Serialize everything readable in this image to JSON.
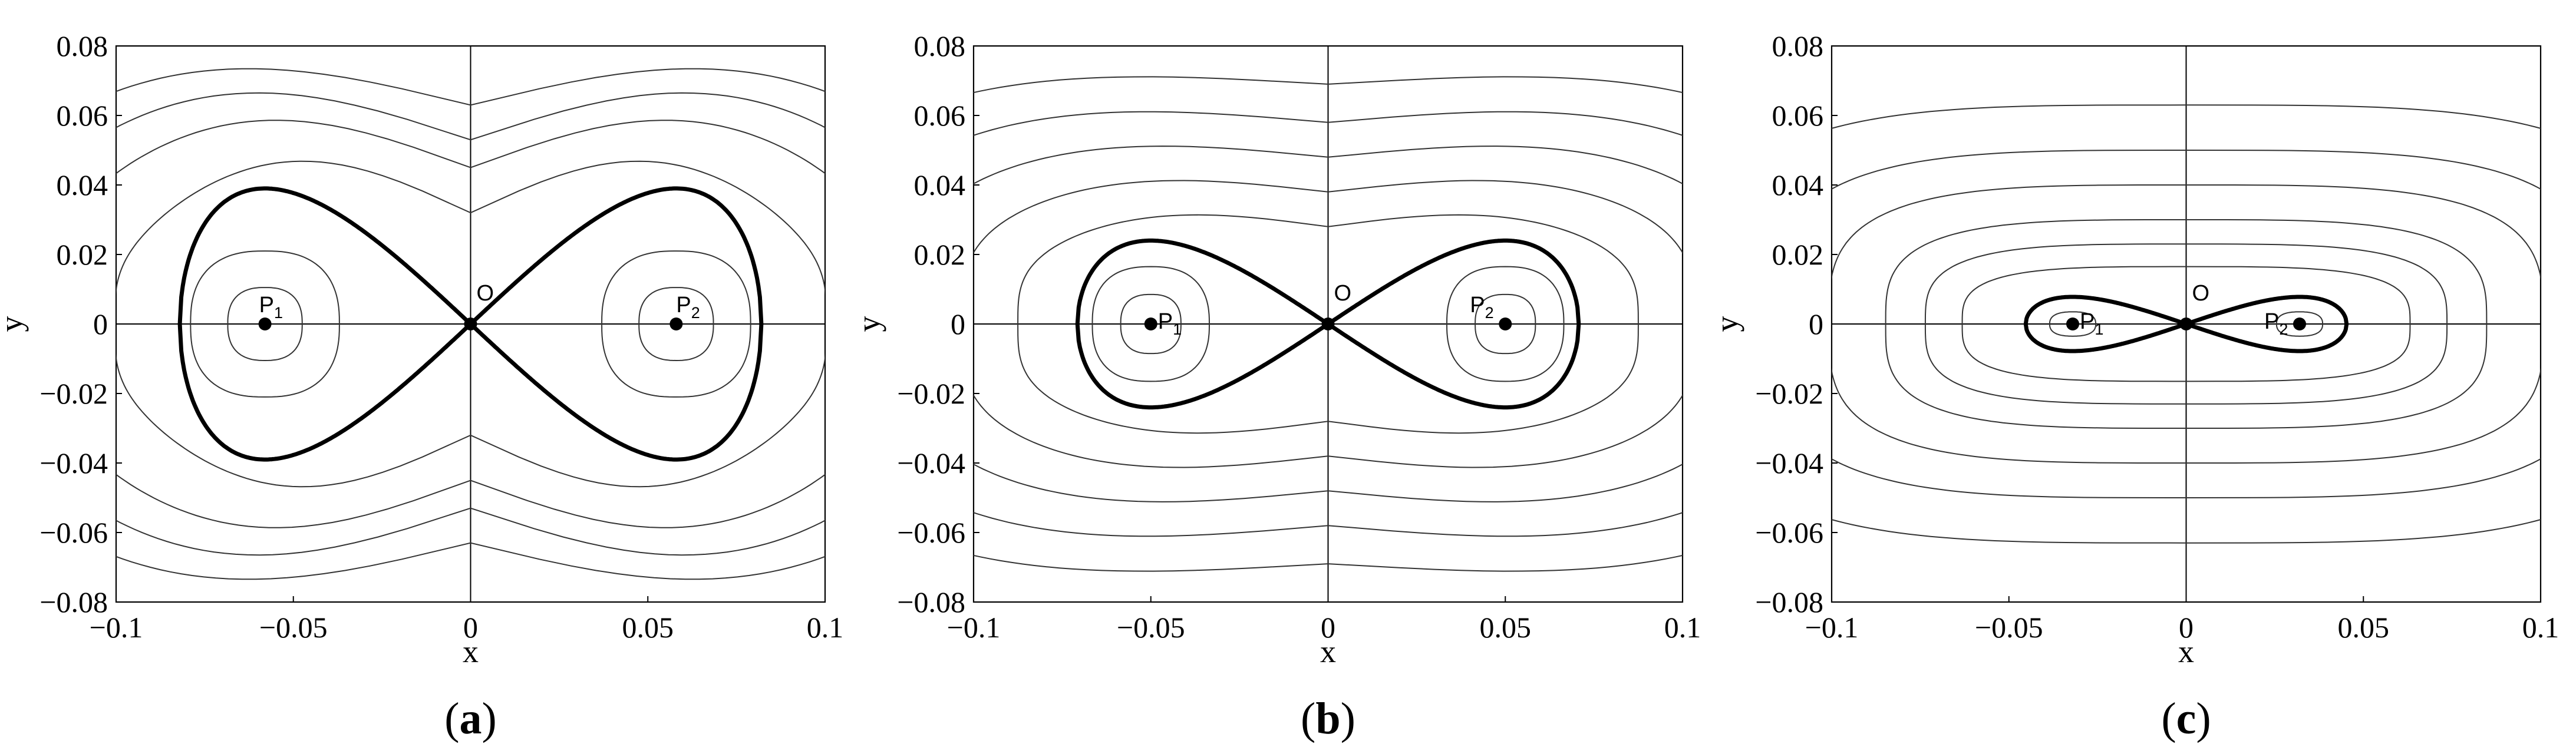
{
  "chart_data": [
    {
      "type": "contour",
      "panel_label": "a",
      "xlabel": "x",
      "ylabel": "y",
      "xlim": [
        -0.1,
        0.1
      ],
      "ylim": [
        -0.08,
        0.08
      ],
      "xticks": [
        -0.1,
        -0.05,
        0,
        0.05,
        0.1
      ],
      "xtick_labels": [
        "−0.1",
        "−0.05",
        "0",
        "0.05",
        "0.1"
      ],
      "yticks": [
        0.08,
        0.06,
        0.04,
        0.02,
        0,
        -0.02,
        -0.04,
        -0.06,
        -0.08
      ],
      "ytick_labels": [
        "0.08",
        "0.06",
        "0.04",
        "0.02",
        "0",
        "−0.02",
        "−0.04",
        "−0.06",
        "−0.08"
      ],
      "equilibria": [
        {
          "name": "P",
          "sub": "1",
          "x": -0.058,
          "y": 0
        },
        {
          "name": "O",
          "sub": "",
          "x": 0,
          "y": 0
        },
        {
          "name": "P",
          "sub": "2",
          "x": 0.058,
          "y": 0
        }
      ],
      "saddle_x": 0.058,
      "separatrix_y_max": 0.039,
      "inner_orbits": [
        {
          "ex": 0.0105,
          "ey": 0.0105
        },
        {
          "ex": 0.021,
          "ey": 0.021
        }
      ],
      "outer_orbits": [
        {
          "y_center": 0.032,
          "y_peak": 0.048
        },
        {
          "y_center": 0.045,
          "y_peak": 0.06
        },
        {
          "y_center": 0.053,
          "y_peak": 0.068
        },
        {
          "y_center": 0.063,
          "y_peak": 0.075
        }
      ]
    },
    {
      "type": "contour",
      "panel_label": "b",
      "xlabel": "x",
      "ylabel": "y",
      "xlim": [
        -0.1,
        0.1
      ],
      "ylim": [
        -0.08,
        0.08
      ],
      "xticks": [
        -0.1,
        -0.05,
        0,
        0.05,
        0.1
      ],
      "xtick_labels": [
        "−0.1",
        "−0.05",
        "0",
        "0.05",
        "0.1"
      ],
      "yticks": [
        0.08,
        0.06,
        0.04,
        0.02,
        0,
        -0.02,
        -0.04,
        -0.06,
        -0.08
      ],
      "ytick_labels": [
        "0.08",
        "0.06",
        "0.04",
        "0.02",
        "0",
        "−0.02",
        "−0.04",
        "−0.06",
        "−0.08"
      ],
      "equilibria": [
        {
          "name": "P",
          "sub": "1",
          "x": -0.05,
          "y": 0
        },
        {
          "name": "O",
          "sub": "",
          "x": 0,
          "y": 0
        },
        {
          "name": "P",
          "sub": "2",
          "x": 0.05,
          "y": 0
        }
      ],
      "saddle_x": 0.05,
      "separatrix_y_max": 0.024,
      "inner_orbits": [
        {
          "ex": 0.0085,
          "ey": 0.0085
        },
        {
          "ex": 0.0165,
          "ey": 0.0165
        }
      ],
      "outer_orbits": [
        {
          "y_center": 0.028,
          "y_peak": 0.032
        },
        {
          "y_center": 0.038,
          "y_peak": 0.042
        },
        {
          "y_center": 0.048,
          "y_peak": 0.052
        },
        {
          "y_center": 0.058,
          "y_peak": 0.062
        },
        {
          "y_center": 0.069,
          "y_peak": 0.072
        }
      ]
    },
    {
      "type": "contour",
      "panel_label": "c",
      "xlabel": "x",
      "ylabel": "y",
      "xlim": [
        -0.1,
        0.1
      ],
      "ylim": [
        -0.08,
        0.08
      ],
      "xticks": [
        -0.1,
        -0.05,
        0,
        0.05,
        0.1
      ],
      "xtick_labels": [
        "−0.1",
        "−0.05",
        "0",
        "0.05",
        "0.1"
      ],
      "yticks": [
        0.08,
        0.06,
        0.04,
        0.02,
        0,
        -0.02,
        -0.04,
        -0.06,
        -0.08
      ],
      "ytick_labels": [
        "0.08",
        "0.06",
        "0.04",
        "0.02",
        "0",
        "−0.02",
        "−0.04",
        "−0.06",
        "−0.08"
      ],
      "equilibria": [
        {
          "name": "P",
          "sub": "1",
          "x": -0.032,
          "y": 0
        },
        {
          "name": "O",
          "sub": "",
          "x": 0,
          "y": 0
        },
        {
          "name": "P",
          "sub": "2",
          "x": 0.032,
          "y": 0
        }
      ],
      "saddle_x": 0.032,
      "separatrix_y_max": 0.0078,
      "inner_orbits": [
        {
          "ex": 0.0065,
          "ey": 0.0035
        }
      ],
      "outer_orbits": [
        {
          "y_center": 0.0165,
          "y_peak": 0.0165
        },
        {
          "y_center": 0.023,
          "y_peak": 0.023
        },
        {
          "y_center": 0.03,
          "y_peak": 0.03
        },
        {
          "y_center": 0.04,
          "y_peak": 0.04
        },
        {
          "y_center": 0.05,
          "y_peak": 0.05
        },
        {
          "y_center": 0.063,
          "y_peak": 0.063
        }
      ]
    }
  ]
}
